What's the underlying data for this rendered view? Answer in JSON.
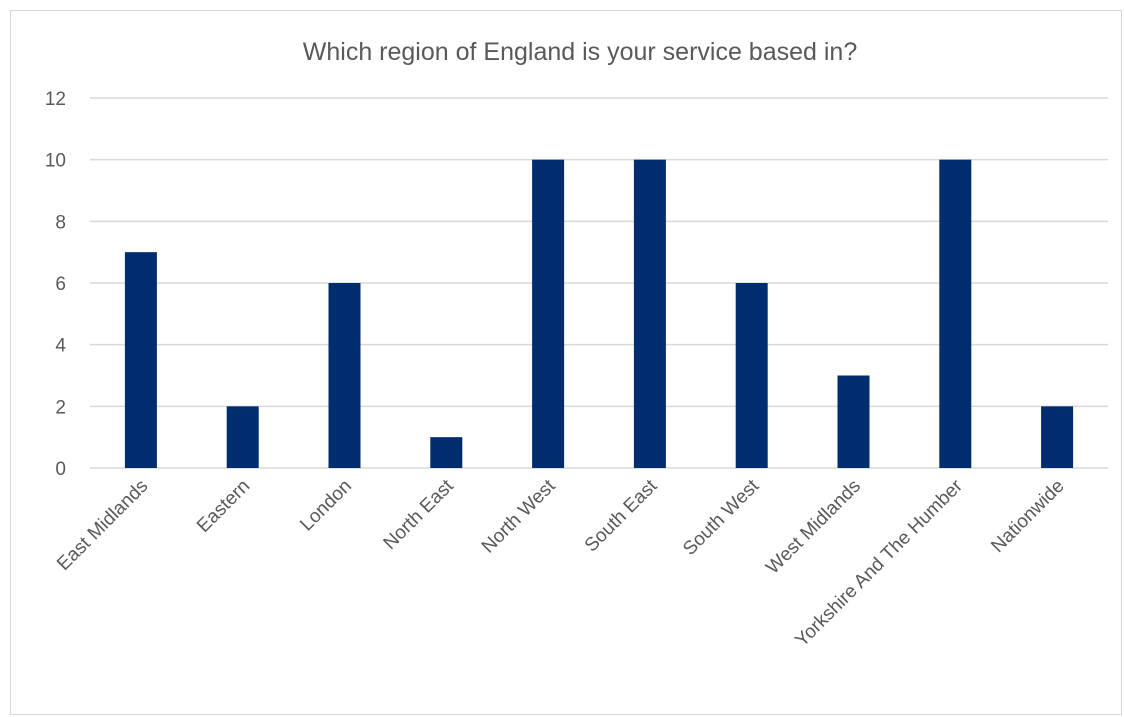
{
  "chart_data": {
    "type": "bar",
    "title": "Which region of England  is your service based in?",
    "xlabel": "",
    "ylabel": "",
    "ylim": [
      0,
      12
    ],
    "yticks": [
      0,
      2,
      4,
      6,
      8,
      10,
      12
    ],
    "grid": true,
    "legend": "none",
    "bar_color": "#002d6e",
    "gridline_color": "#d9d9d9",
    "text_color": "#595959",
    "categories": [
      "East Midlands",
      "Eastern",
      "London",
      "North East",
      "North West",
      "South East",
      "South West",
      "West Midlands",
      "Yorkshire And The Humber",
      "Nationwide"
    ],
    "values": [
      7,
      2,
      6,
      1,
      10,
      10,
      6,
      3,
      10,
      2
    ]
  }
}
